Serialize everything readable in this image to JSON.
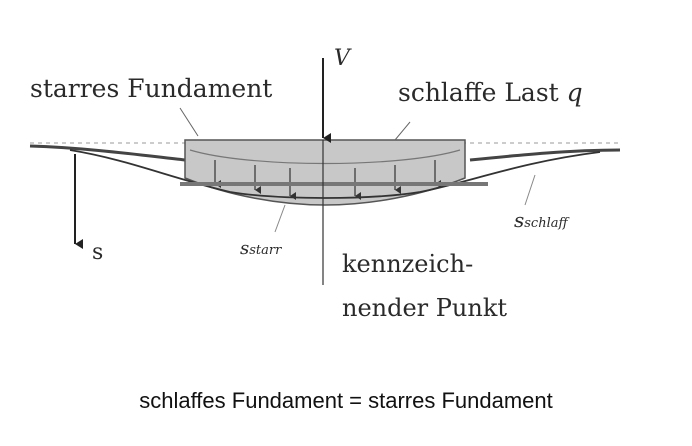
{
  "labels": {
    "rigid": "starres Fundament",
    "flexible_load": "schlaffe Last",
    "load_q": "q",
    "force": "V",
    "s_axis": "s",
    "s_flexible_main": "s",
    "s_flexible_sub": "schlaff",
    "s_rigid_main": "s",
    "s_rigid_sub": "starr",
    "char_point_line1": "kennzeich-",
    "char_point_line2": "nender Punkt"
  },
  "caption": "schlaffes Fundament = starres Fundament"
}
